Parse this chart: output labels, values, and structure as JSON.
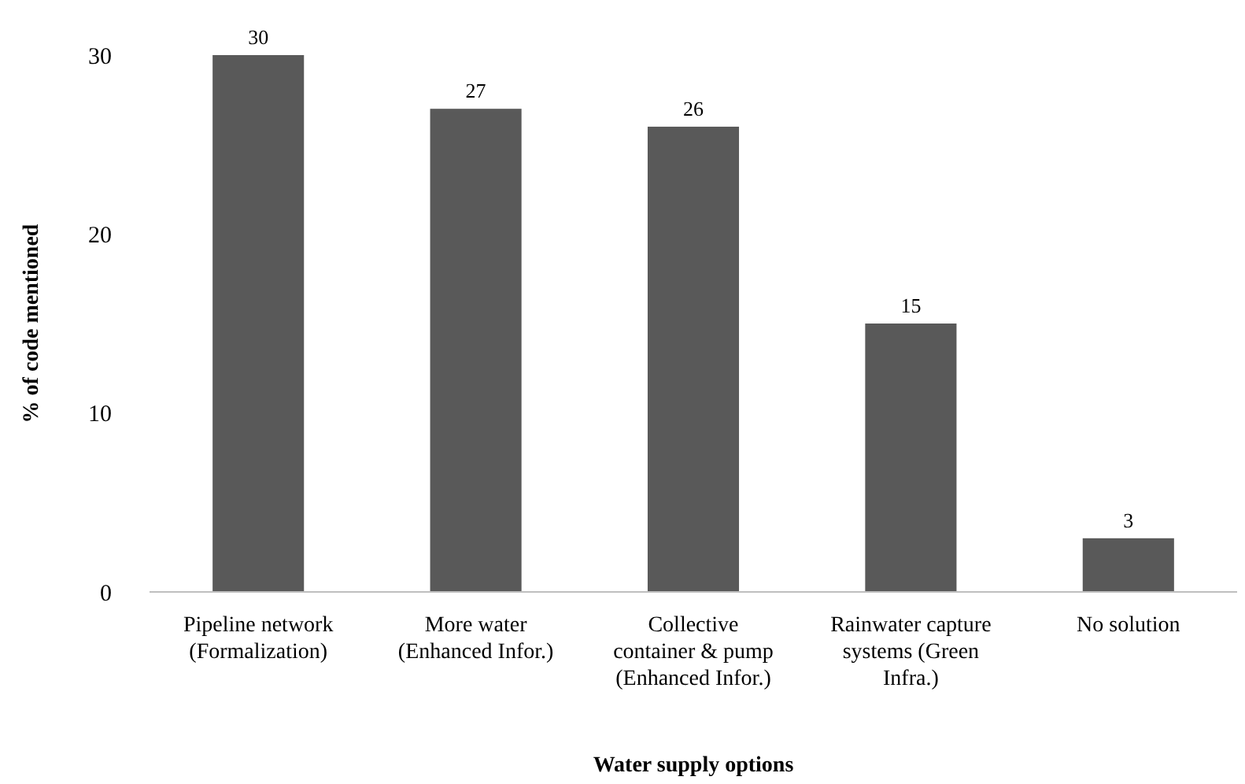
{
  "chart_data": {
    "type": "bar",
    "xlabel": "Water supply options",
    "ylabel": "% of code mentioned",
    "categories": [
      "Pipeline network\n(Formalization)",
      "More water\n(Enhanced Infor.)",
      "Collective\ncontainer & pump\n(Enhanced Infor.)",
      "Rainwater capture\nsystems (Green\nInfra.)",
      "No solution"
    ],
    "values": [
      30,
      27,
      26,
      15,
      3
    ],
    "color": "#595959",
    "ylim": [
      0,
      30
    ],
    "yticks": [
      0,
      10,
      20,
      30
    ],
    "data_labels": true,
    "grid": false
  }
}
